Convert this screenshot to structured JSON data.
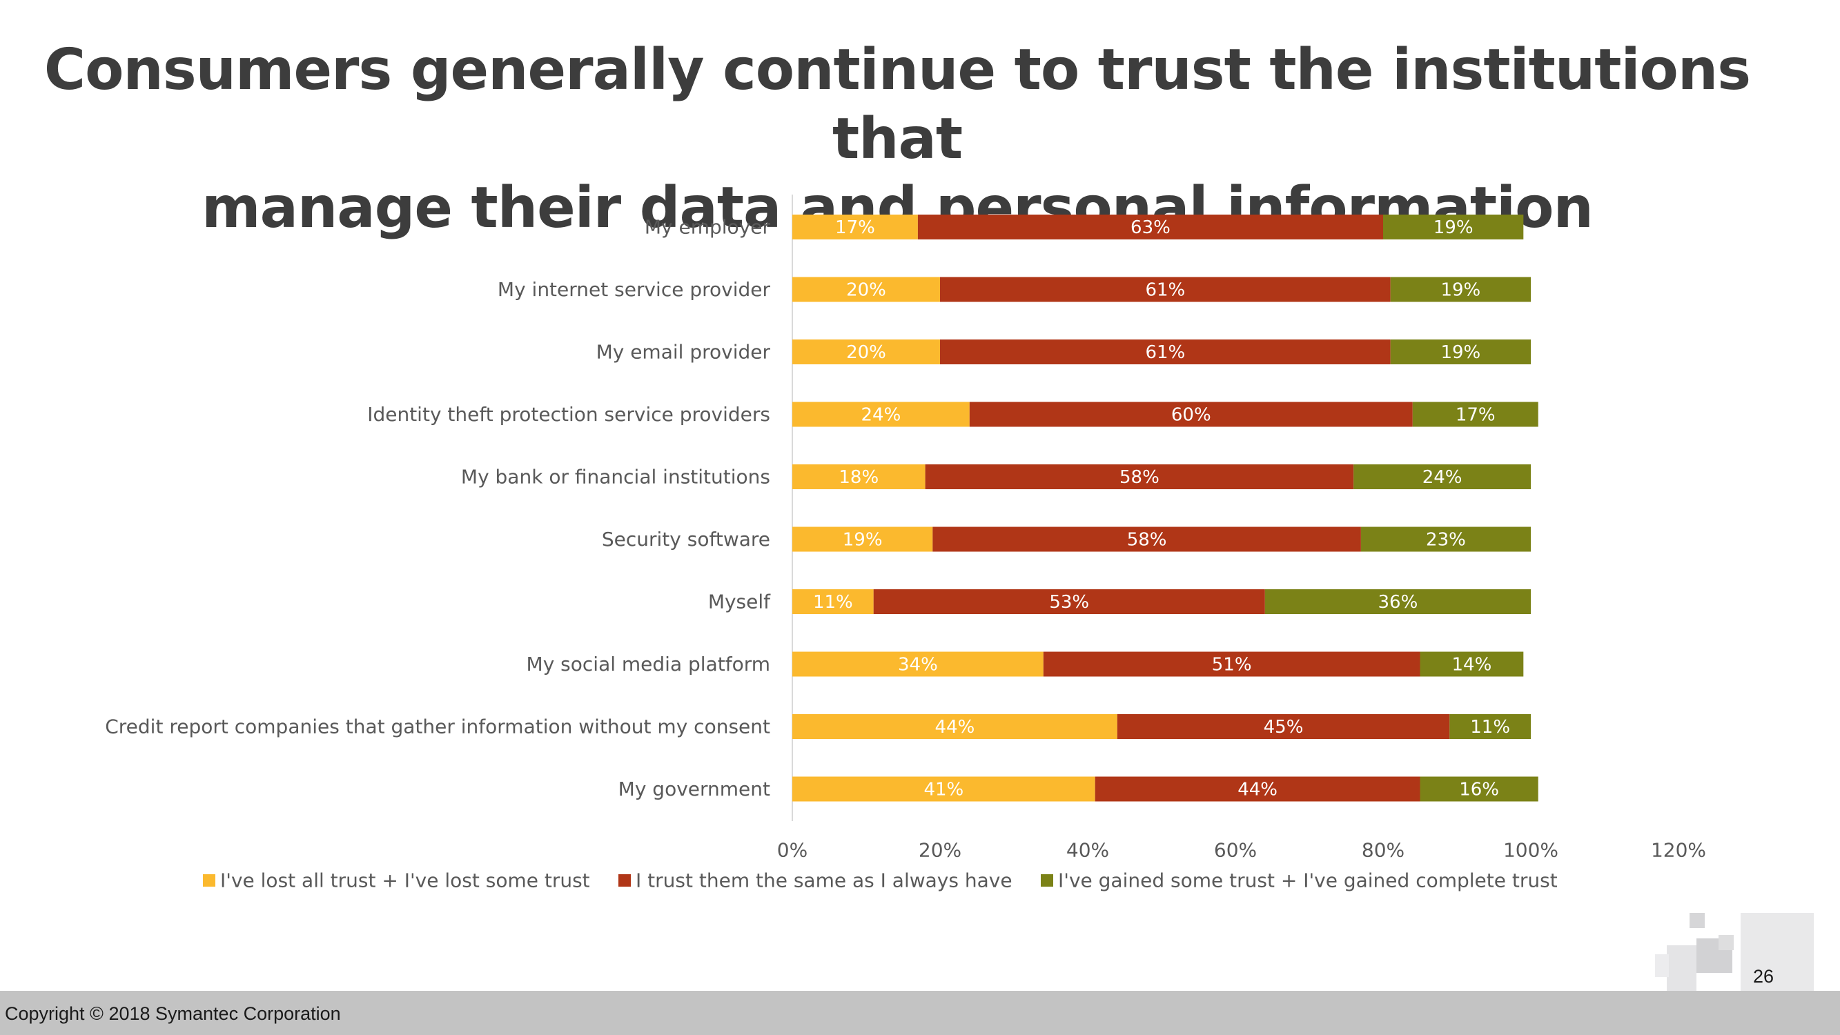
{
  "slide": {
    "title_line1": "Consumers generally continue to trust the institutions that",
    "title_line2": "manage their data and personal information",
    "copyright": "Copyright © 2018 Symantec Corporation",
    "page_number": "26"
  },
  "chart_data": {
    "type": "bar",
    "orientation": "horizontal",
    "stacked": true,
    "title": "",
    "xlabel": "",
    "ylabel": "",
    "xlim": [
      0,
      120
    ],
    "x_ticks": [
      "0%",
      "20%",
      "40%",
      "60%",
      "80%",
      "100%",
      "120%"
    ],
    "gridlines": false,
    "legend_position": "bottom",
    "categories": [
      "My employer",
      "My internet service provider",
      "My email provider",
      "Identity theft protection service providers",
      "My bank or financial institutions",
      "Security software",
      "Myself",
      "My social media platform",
      "Credit report companies that gather information without my consent",
      "My government"
    ],
    "series": [
      {
        "name": "I've lost all trust + I've lost some trust",
        "color": "#fbb92e",
        "values": [
          17,
          20,
          20,
          24,
          18,
          19,
          11,
          34,
          44,
          41
        ],
        "labels": [
          "17%",
          "20%",
          "20%",
          "24%",
          "18%",
          "19%",
          "11%",
          "34%",
          "44%",
          "41%"
        ]
      },
      {
        "name": "I trust them the same as I always have",
        "color": "#b03617",
        "values": [
          63,
          61,
          61,
          60,
          58,
          58,
          53,
          51,
          45,
          44
        ],
        "labels": [
          "63%",
          "61%",
          "61%",
          "60%",
          "58%",
          "58%",
          "53%",
          "51%",
          "45%",
          "44%"
        ]
      },
      {
        "name": "I've gained some trust + I've gained complete trust",
        "color": "#7b8217",
        "values": [
          19,
          19,
          19,
          17,
          24,
          23,
          36,
          14,
          11,
          16
        ],
        "labels": [
          "19%",
          "19%",
          "19%",
          "17%",
          "24%",
          "23%",
          "36%",
          "14%",
          "11%",
          "16%"
        ]
      }
    ]
  }
}
